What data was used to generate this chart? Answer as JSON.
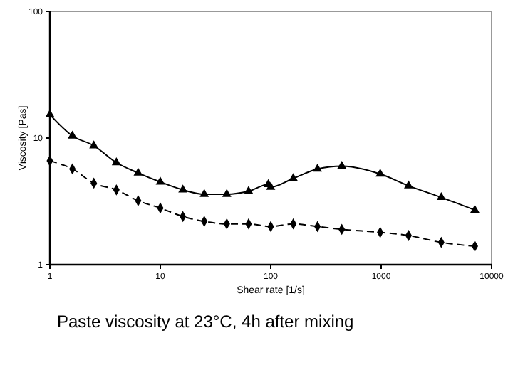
{
  "chart_data": {
    "type": "line",
    "title": "Paste viscosity at 23°C, 4h after mixing",
    "xlabel": "Shear rate [1/s]",
    "ylabel": "Viscosity [Pas]",
    "log": "xy",
    "xlim": [
      1,
      10000
    ],
    "ylim": [
      1,
      100
    ],
    "xticks": [
      1,
      10,
      100,
      1000,
      10000
    ],
    "yticks": [
      1,
      10,
      100
    ],
    "grid": false,
    "series": [
      {
        "color": "#000000",
        "marker": "triangle",
        "line_style": "solid",
        "x": [
          1,
          1.6,
          2.5,
          4,
          6.3,
          10,
          16,
          25,
          40,
          63,
          95,
          100,
          160,
          265,
          440,
          980,
          1770,
          3500,
          7050
        ],
        "values": [
          15.3,
          10.4,
          8.7,
          6.4,
          5.3,
          4.5,
          3.9,
          3.6,
          3.6,
          3.8,
          4.3,
          4.1,
          4.8,
          5.7,
          6.0,
          5.2,
          4.2,
          3.4,
          2.7
        ]
      },
      {
        "color": "#000000",
        "marker": "diamond",
        "line_style": "dashed",
        "x": [
          1,
          1.6,
          2.5,
          4,
          6.3,
          10,
          16,
          25,
          40,
          63,
          100,
          160,
          265,
          440,
          980,
          1770,
          3500,
          7050
        ],
        "values": [
          6.6,
          5.7,
          4.4,
          3.9,
          3.2,
          2.8,
          2.4,
          2.2,
          2.1,
          2.1,
          2.0,
          2.1,
          2.0,
          1.9,
          1.8,
          1.7,
          1.5,
          1.4
        ]
      }
    ]
  }
}
